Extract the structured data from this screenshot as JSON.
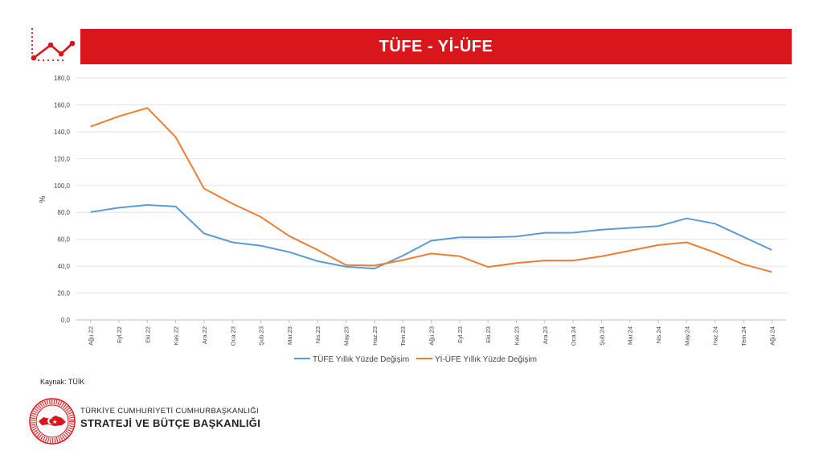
{
  "header": {
    "title": "TÜFE - Yİ-ÜFE"
  },
  "source": "Kaynak: TÜİK",
  "organization": {
    "line1": "TÜRKİYE CUMHURİYETİ CUMHURBAŞKANLIĞI",
    "line2": "STRATEJİ VE BÜTÇE BAŞKANLIĞI",
    "seal_text": "T.C. CUMHURBAŞKANLIĞI STRATEJİ VE BÜTÇE BAŞKANLIĞI"
  },
  "colors": {
    "banner": "#d9161c",
    "tufe": "#5b9bd5",
    "yiufe": "#ed7d31"
  },
  "icons": [
    "trend-line-icon",
    "government-seal-icon"
  ],
  "chart_data": {
    "type": "line",
    "title": "TÜFE - Yİ-ÜFE",
    "ylabel": "%",
    "xlabel": "",
    "ylim": [
      0,
      180
    ],
    "yticks": [
      "0,0",
      "20,0",
      "40,0",
      "60,0",
      "80,0",
      "100,0",
      "120,0",
      "140,0",
      "160,0",
      "180,0"
    ],
    "grid": true,
    "legend_position": "bottom",
    "categories": [
      "Ağu.22",
      "Eyl.22",
      "Eki.22",
      "Kas.22",
      "Ara.22",
      "Oca.23",
      "Şub.23",
      "Mar.23",
      "Nis.23",
      "May.23",
      "Haz.23",
      "Tem.23",
      "Ağu.23",
      "Eyl.23",
      "Eki.23",
      "Kas.23",
      "Ara.23",
      "Oca.24",
      "Şub.24",
      "Mar.24",
      "Nis.24",
      "May.24",
      "Haz.24",
      "Tem.24",
      "Ağu.24"
    ],
    "series": [
      {
        "name": "TÜFE Yıllık Yüzde Değişim",
        "color": "#5b9bd5",
        "values": [
          80.2,
          83.5,
          85.5,
          84.4,
          64.3,
          57.7,
          55.2,
          50.5,
          43.7,
          39.6,
          38.2,
          47.8,
          58.9,
          61.5,
          61.4,
          62.0,
          64.8,
          64.9,
          67.1,
          68.5,
          69.8,
          75.5,
          71.6,
          61.8,
          52.0
        ]
      },
      {
        "name": "Yİ-ÜFE Yıllık Yüzde Değişim",
        "color": "#ed7d31",
        "values": [
          143.8,
          151.5,
          157.7,
          136.0,
          97.7,
          86.5,
          76.6,
          62.4,
          52.1,
          40.8,
          40.4,
          44.5,
          49.4,
          47.4,
          39.4,
          42.3,
          44.2,
          44.2,
          47.3,
          51.5,
          55.7,
          57.7,
          50.1,
          41.4,
          35.7
        ]
      }
    ]
  }
}
